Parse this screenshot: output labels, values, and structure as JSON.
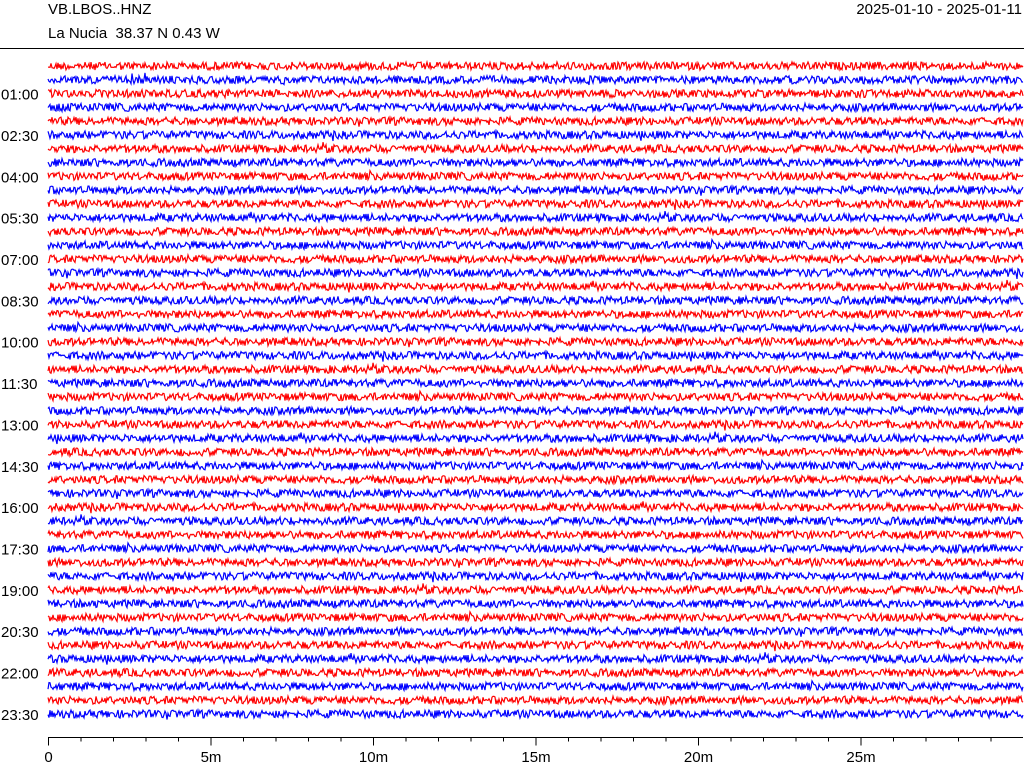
{
  "chart_data": {
    "type": "helicorder",
    "title": "VB.LBOS..HNZ",
    "subtitle": "La Nucia  38.37 N 0.43 W",
    "date_range": "2025-01-10 - 2025-01-11",
    "colors": [
      "#ff0000",
      "#0000ff"
    ],
    "categories": [
      null,
      null,
      "01:00",
      null,
      null,
      "02:30",
      null,
      null,
      "04:00",
      null,
      null,
      "05:30",
      null,
      null,
      "07:00",
      null,
      null,
      "08:30",
      null,
      null,
      "10:00",
      null,
      null,
      "11:30",
      null,
      null,
      "13:00",
      null,
      null,
      "14:30",
      null,
      null,
      "16:00",
      null,
      null,
      "17:30",
      null,
      null,
      "19:00",
      null,
      null,
      "20:30",
      null,
      null,
      "22:00",
      null,
      null,
      "23:30"
    ],
    "xlim": [
      0,
      30
    ],
    "xticks": [
      0,
      {
        "value": 5,
        "label": "5m"
      },
      {
        "value": 10,
        "label": "10m"
      },
      {
        "value": 15,
        "label": "15m"
      },
      {
        "value": 20,
        "label": "20m"
      },
      {
        "value": 25,
        "label": "25m"
      }
    ],
    "xminorticks": [
      1,
      2,
      3,
      4,
      6,
      7,
      8,
      9,
      11,
      12,
      13,
      14,
      16,
      17,
      18,
      19,
      21,
      22,
      23,
      24,
      26,
      27,
      28,
      29
    ]
  }
}
